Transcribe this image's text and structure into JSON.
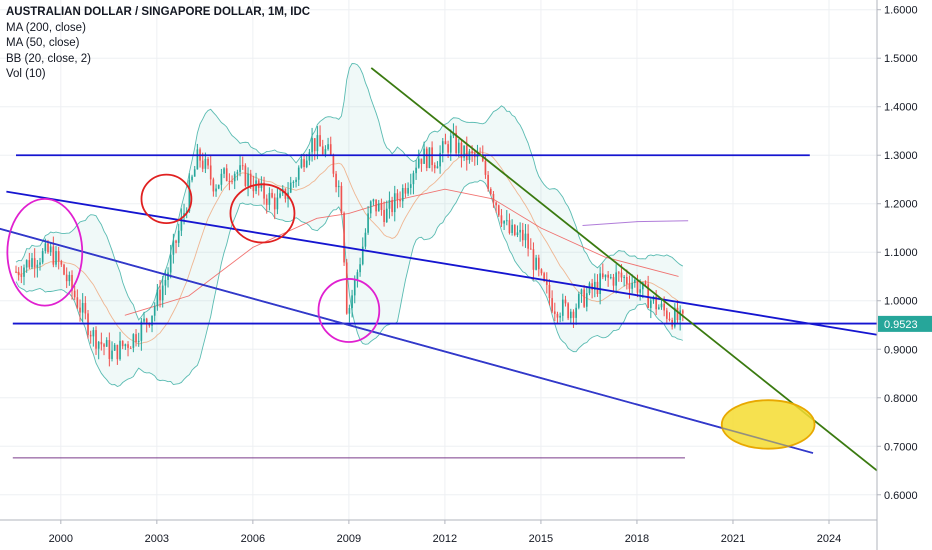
{
  "legend": {
    "title": "AUSTRALIAN DOLLAR / SINGAPORE DOLLAR, 1M, IDC",
    "ma200": "MA (200, close)",
    "ma50": "MA (50, close)",
    "bb": "BB (20, close, 2)",
    "vol": "Vol (10)"
  },
  "last_price": "0.9523",
  "colors": {
    "up": "#26a69a",
    "down": "#ef5350",
    "bb_band": "#26a69a",
    "ma_line": "#ef5350",
    "channel": "#1515d0",
    "trend": "#3a7a10",
    "circle_magenta": "#e020d0",
    "circle_red": "#e02020",
    "target_fill": "#f5dc30",
    "price_tag": "#26a69a"
  },
  "chart_data": {
    "type": "candlestick",
    "symbol": "AUDSGD",
    "interval": "1M",
    "x_ticks": [
      "2000",
      "2003",
      "2006",
      "2009",
      "2012",
      "2015",
      "2018",
      "2021",
      "2024"
    ],
    "y_ticks": [
      "1.6000",
      "1.5000",
      "1.4000",
      "1.3000",
      "1.2000",
      "1.1000",
      "1.0000",
      "0.9000",
      "0.8000",
      "0.7000",
      "0.6000"
    ],
    "xlim": [
      1998.1,
      2025.5
    ],
    "ylim": [
      0.548,
      1.62
    ],
    "price_anchors": [
      [
        1998.6,
        1.06
      ],
      [
        1999.2,
        1.09
      ],
      [
        1999.7,
        1.1
      ],
      [
        2000.0,
        1.07
      ],
      [
        2000.5,
        1.0
      ],
      [
        2001.0,
        0.93
      ],
      [
        2001.6,
        0.89
      ],
      [
        2002.2,
        0.92
      ],
      [
        2002.8,
        0.97
      ],
      [
        2003.3,
        1.05
      ],
      [
        2003.8,
        1.17
      ],
      [
        2004.3,
        1.3
      ],
      [
        2004.8,
        1.24
      ],
      [
        2005.4,
        1.27
      ],
      [
        2005.9,
        1.25
      ],
      [
        2006.3,
        1.22
      ],
      [
        2006.8,
        1.2
      ],
      [
        2007.3,
        1.25
      ],
      [
        2007.8,
        1.33
      ],
      [
        2008.4,
        1.3
      ],
      [
        2008.75,
        1.22
      ],
      [
        2008.95,
        0.97
      ],
      [
        2009.3,
        1.07
      ],
      [
        2009.7,
        1.2
      ],
      [
        2010.2,
        1.18
      ],
      [
        2010.7,
        1.23
      ],
      [
        2011.2,
        1.3
      ],
      [
        2011.7,
        1.29
      ],
      [
        2012.2,
        1.33
      ],
      [
        2012.6,
        1.3
      ],
      [
        2013.1,
        1.29
      ],
      [
        2013.5,
        1.22
      ],
      [
        2014.0,
        1.14
      ],
      [
        2014.5,
        1.13
      ],
      [
        2015.0,
        1.04
      ],
      [
        2015.4,
        0.99
      ],
      [
        2015.9,
        0.98
      ],
      [
        2016.4,
        1.01
      ],
      [
        2016.9,
        1.04
      ],
      [
        2017.4,
        1.05
      ],
      [
        2017.9,
        1.04
      ],
      [
        2018.3,
        1.01
      ],
      [
        2018.8,
        0.98
      ],
      [
        2019.3,
        0.96
      ],
      [
        2019.5,
        0.9523
      ]
    ],
    "ma50_anchors": [
      [
        2002.0,
        0.97
      ],
      [
        2004.0,
        1.01
      ],
      [
        2006.0,
        1.11
      ],
      [
        2008.0,
        1.17
      ],
      [
        2009.0,
        1.18
      ],
      [
        2010.0,
        1.2
      ],
      [
        2012.0,
        1.23
      ],
      [
        2013.5,
        1.21
      ],
      [
        2015.0,
        1.15
      ],
      [
        2017.0,
        1.09
      ],
      [
        2019.3,
        1.05
      ]
    ],
    "ma200_anchors": [
      [
        2016.3,
        1.155
      ],
      [
        2018.0,
        1.163
      ],
      [
        2019.6,
        1.165
      ]
    ],
    "last_price": 0.9523,
    "annotations": {
      "horizontal_lines": [
        {
          "y": 1.3,
          "x": [
            1998.6,
            2023.4
          ]
        },
        {
          "y": 0.953,
          "x": [
            1998.5,
            2025.5
          ]
        },
        {
          "y": 0.676,
          "x": [
            1998.5,
            2019.5
          ]
        }
      ],
      "channel_lines": [
        {
          "from": [
            1998.0,
            1.15
          ],
          "to": [
            2023.5,
            0.686
          ]
        },
        {
          "from": [
            1998.3,
            1.225
          ],
          "to": [
            2025.5,
            0.93
          ]
        }
      ],
      "trend_line": {
        "from": [
          2009.7,
          1.48
        ],
        "to": [
          2025.5,
          0.65
        ]
      },
      "magenta_circles": [
        {
          "center": [
            1999.5,
            1.1
          ],
          "rx": 1.17,
          "ry": 0.11
        },
        {
          "center": [
            2009.0,
            0.98
          ],
          "rx": 0.95,
          "ry": 0.065
        }
      ],
      "red_circles": [
        {
          "center": [
            2003.3,
            1.21
          ],
          "rx": 0.78,
          "ry": 0.05
        },
        {
          "center": [
            2006.3,
            1.18
          ],
          "rx": 1.0,
          "ry": 0.06
        }
      ],
      "target_ellipse": {
        "center": [
          2022.1,
          0.745
        ],
        "rx": 1.45,
        "ry": 0.05
      }
    }
  }
}
